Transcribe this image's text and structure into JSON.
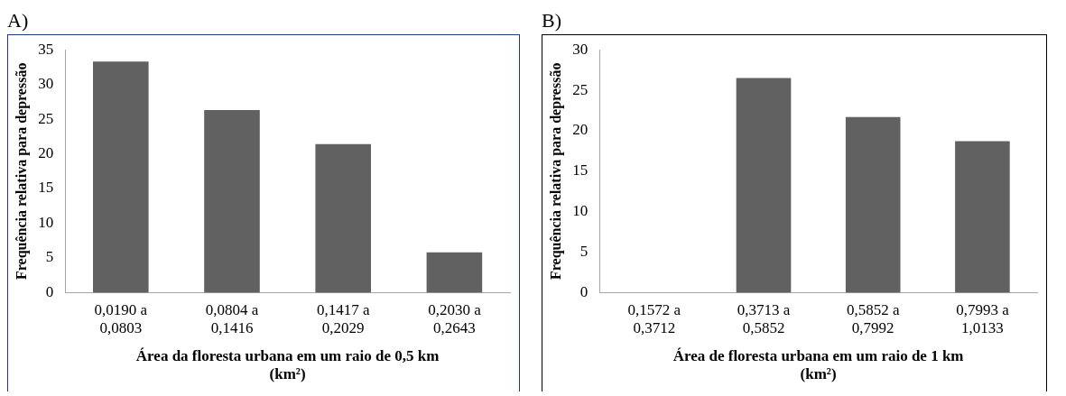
{
  "chart_data": [
    {
      "type": "bar",
      "title": "A)",
      "categories": [
        "0,0190 a 0,0803",
        "0,0804 a 0,1416",
        "0,1417 a 0,2029",
        "0,2030 a 0,2643"
      ],
      "values": [
        33.3,
        26.3,
        21.4,
        5.8
      ],
      "color": "#616161",
      "xlabel": "Área da floresta urbana em um raio de 0,5 km (km²)",
      "ylabel": "Frequência relativa para depressão",
      "ylim": [
        0,
        35
      ],
      "yticks": [
        0,
        5,
        10,
        15,
        20,
        25,
        30,
        35
      ],
      "grid": false,
      "legend": false
    },
    {
      "type": "bar",
      "title": "B)",
      "categories": [
        "0,1572 a 0,3712",
        "0,3713 a 0,5852",
        "0,5852 a 0,7992",
        "0,7993 a 1,0133"
      ],
      "values": [
        0,
        26.5,
        21.7,
        18.7
      ],
      "color": "#616161",
      "xlabel": "Área de floresta urbana em um raio de 1 km (km²)",
      "ylabel": "Frequência relativa para depressão",
      "ylim": [
        0,
        30
      ],
      "yticks": [
        0,
        5,
        10,
        15,
        20,
        25,
        30
      ],
      "grid": false,
      "legend": false
    }
  ]
}
